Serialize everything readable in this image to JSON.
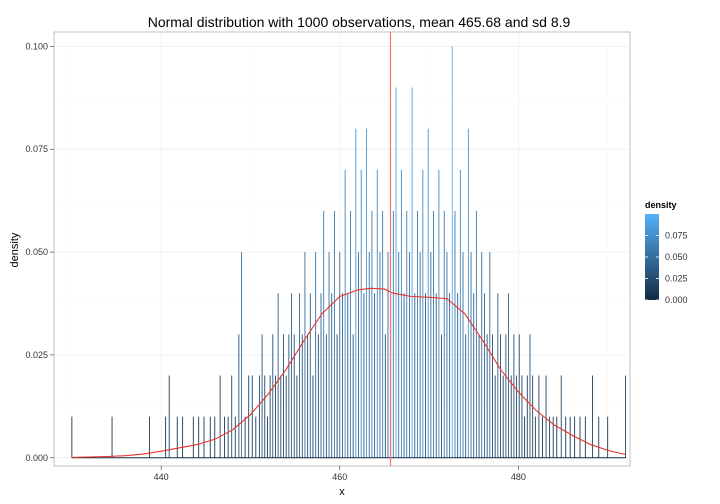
{
  "chart_data": {
    "type": "bar",
    "title": "Normal distribution with 1000 observations, mean 465.68 and sd 8.9",
    "xlabel": "x",
    "ylabel": "density",
    "xlim": [
      428,
      492.5
    ],
    "ylim": [
      -0.002,
      0.1035
    ],
    "x_ticks": [
      440,
      460,
      480
    ],
    "y_ticks": [
      0.0,
      0.025,
      0.05,
      0.075,
      0.1
    ],
    "y_tick_labels": [
      "0.000",
      "0.025",
      "0.050",
      "0.075",
      "0.100"
    ],
    "mean_line": {
      "x": 465.68,
      "color": "#F8766D"
    },
    "grid": true,
    "legend": {
      "title": "density",
      "placement": "right",
      "breaks": [
        0.0,
        0.025,
        0.05,
        0.075
      ],
      "labels": [
        "0.000",
        "0.025",
        "0.050",
        "0.075"
      ],
      "range": [
        0.0,
        0.1
      ],
      "colors": [
        "#132B43",
        "#56B1F7"
      ]
    },
    "density_curve": {
      "color": "#E8332A",
      "points": [
        [
          430,
          0.0001
        ],
        [
          434,
          0.0003
        ],
        [
          436,
          0.0005
        ],
        [
          438,
          0.0009
        ],
        [
          440,
          0.0016
        ],
        [
          442,
          0.0024
        ],
        [
          444,
          0.0032
        ],
        [
          446,
          0.0045
        ],
        [
          448,
          0.0068
        ],
        [
          450,
          0.0105
        ],
        [
          452,
          0.0155
        ],
        [
          454,
          0.0215
        ],
        [
          456,
          0.0285
        ],
        [
          458,
          0.035
        ],
        [
          460,
          0.0392
        ],
        [
          462,
          0.0408
        ],
        [
          463.5,
          0.0412
        ],
        [
          465,
          0.041
        ],
        [
          466,
          0.04
        ],
        [
          468,
          0.0392
        ],
        [
          470,
          0.039
        ],
        [
          472,
          0.0387
        ],
        [
          474,
          0.035
        ],
        [
          476,
          0.0285
        ],
        [
          478,
          0.0215
        ],
        [
          480,
          0.016
        ],
        [
          482,
          0.0115
        ],
        [
          484,
          0.008
        ],
        [
          486,
          0.0055
        ],
        [
          488,
          0.0033
        ],
        [
          490,
          0.0018
        ],
        [
          492,
          0.0008
        ]
      ]
    },
    "bars": [
      [
        430,
        0.01
      ],
      [
        434.5,
        0.01
      ],
      [
        438.7,
        0.01
      ],
      [
        440.5,
        0.01
      ],
      [
        440.9,
        0.02
      ],
      [
        441.8,
        0.01
      ],
      [
        442.4,
        0.01
      ],
      [
        443.6,
        0.01
      ],
      [
        444.2,
        0.01
      ],
      [
        444.8,
        0.01
      ],
      [
        445.5,
        0.01
      ],
      [
        446.0,
        0.01
      ],
      [
        446.6,
        0.02
      ],
      [
        447.1,
        0.01
      ],
      [
        447.5,
        0.01
      ],
      [
        447.9,
        0.02
      ],
      [
        448.3,
        0.01
      ],
      [
        448.7,
        0.03
      ],
      [
        449.0,
        0.05
      ],
      [
        449.4,
        0.01
      ],
      [
        449.8,
        0.02
      ],
      [
        450.2,
        0.02
      ],
      [
        450.6,
        0.01
      ],
      [
        451.0,
        0.02
      ],
      [
        451.3,
        0.03
      ],
      [
        451.6,
        0.02
      ],
      [
        451.9,
        0.01
      ],
      [
        452.2,
        0.02
      ],
      [
        452.5,
        0.03
      ],
      [
        452.8,
        0.02
      ],
      [
        453.1,
        0.04
      ],
      [
        453.4,
        0.02
      ],
      [
        453.7,
        0.03
      ],
      [
        454.0,
        0.02
      ],
      [
        454.3,
        0.03
      ],
      [
        454.6,
        0.04
      ],
      [
        454.9,
        0.03
      ],
      [
        455.2,
        0.02
      ],
      [
        455.5,
        0.04
      ],
      [
        455.8,
        0.03
      ],
      [
        456.1,
        0.05
      ],
      [
        456.4,
        0.03
      ],
      [
        456.7,
        0.04
      ],
      [
        457.0,
        0.02
      ],
      [
        457.3,
        0.05
      ],
      [
        457.6,
        0.03
      ],
      [
        457.9,
        0.04
      ],
      [
        458.2,
        0.06
      ],
      [
        458.5,
        0.03
      ],
      [
        458.8,
        0.05
      ],
      [
        459.1,
        0.04
      ],
      [
        459.4,
        0.06
      ],
      [
        459.7,
        0.03
      ],
      [
        460.0,
        0.05
      ],
      [
        460.3,
        0.04
      ],
      [
        460.6,
        0.07
      ],
      [
        460.9,
        0.04
      ],
      [
        461.2,
        0.06
      ],
      [
        461.5,
        0.03
      ],
      [
        461.8,
        0.08
      ],
      [
        462.1,
        0.05
      ],
      [
        462.4,
        0.07
      ],
      [
        462.7,
        0.04
      ],
      [
        463.0,
        0.08
      ],
      [
        463.3,
        0.05
      ],
      [
        463.6,
        0.06
      ],
      [
        463.9,
        0.04
      ],
      [
        464.2,
        0.07
      ],
      [
        464.5,
        0.05
      ],
      [
        464.8,
        0.06
      ],
      [
        465.1,
        0.03
      ],
      [
        465.4,
        0.05
      ],
      [
        465.7,
        0.04
      ],
      [
        466.0,
        0.06
      ],
      [
        466.3,
        0.09
      ],
      [
        466.6,
        0.05
      ],
      [
        466.9,
        0.07
      ],
      [
        467.2,
        0.04
      ],
      [
        467.5,
        0.06
      ],
      [
        467.8,
        0.05
      ],
      [
        468.1,
        0.09
      ],
      [
        468.4,
        0.04
      ],
      [
        468.7,
        0.06
      ],
      [
        469.0,
        0.05
      ],
      [
        469.3,
        0.07
      ],
      [
        469.6,
        0.04
      ],
      [
        469.9,
        0.08
      ],
      [
        470.2,
        0.05
      ],
      [
        470.5,
        0.06
      ],
      [
        470.8,
        0.04
      ],
      [
        471.1,
        0.07
      ],
      [
        471.4,
        0.03
      ],
      [
        471.7,
        0.06
      ],
      [
        472.0,
        0.05
      ],
      [
        472.3,
        0.04
      ],
      [
        472.6,
        0.1
      ],
      [
        472.9,
        0.06
      ],
      [
        473.2,
        0.04
      ],
      [
        473.5,
        0.07
      ],
      [
        473.8,
        0.05
      ],
      [
        474.1,
        0.03
      ],
      [
        474.4,
        0.08
      ],
      [
        474.7,
        0.05
      ],
      [
        475.0,
        0.04
      ],
      [
        475.3,
        0.06
      ],
      [
        475.6,
        0.03
      ],
      [
        475.9,
        0.05
      ],
      [
        476.2,
        0.04
      ],
      [
        476.5,
        0.03
      ],
      [
        476.8,
        0.05
      ],
      [
        477.1,
        0.03
      ],
      [
        477.4,
        0.02
      ],
      [
        477.7,
        0.04
      ],
      [
        478.0,
        0.03
      ],
      [
        478.3,
        0.02
      ],
      [
        478.6,
        0.03
      ],
      [
        478.9,
        0.04
      ],
      [
        479.2,
        0.02
      ],
      [
        479.5,
        0.03
      ],
      [
        479.8,
        0.02
      ],
      [
        480.1,
        0.03
      ],
      [
        480.4,
        0.02
      ],
      [
        480.7,
        0.01
      ],
      [
        481.0,
        0.02
      ],
      [
        481.3,
        0.03
      ],
      [
        481.6,
        0.02
      ],
      [
        481.9,
        0.01
      ],
      [
        482.3,
        0.02
      ],
      [
        482.7,
        0.01
      ],
      [
        483.1,
        0.02
      ],
      [
        483.5,
        0.01
      ],
      [
        483.9,
        0.01
      ],
      [
        484.3,
        0.01
      ],
      [
        484.8,
        0.02
      ],
      [
        485.3,
        0.01
      ],
      [
        485.8,
        0.01
      ],
      [
        486.3,
        0.01
      ],
      [
        486.9,
        0.01
      ],
      [
        487.5,
        0.01
      ],
      [
        488.3,
        0.02
      ],
      [
        489.0,
        0.01
      ],
      [
        490.0,
        0.01
      ],
      [
        492.0,
        0.02
      ]
    ]
  }
}
